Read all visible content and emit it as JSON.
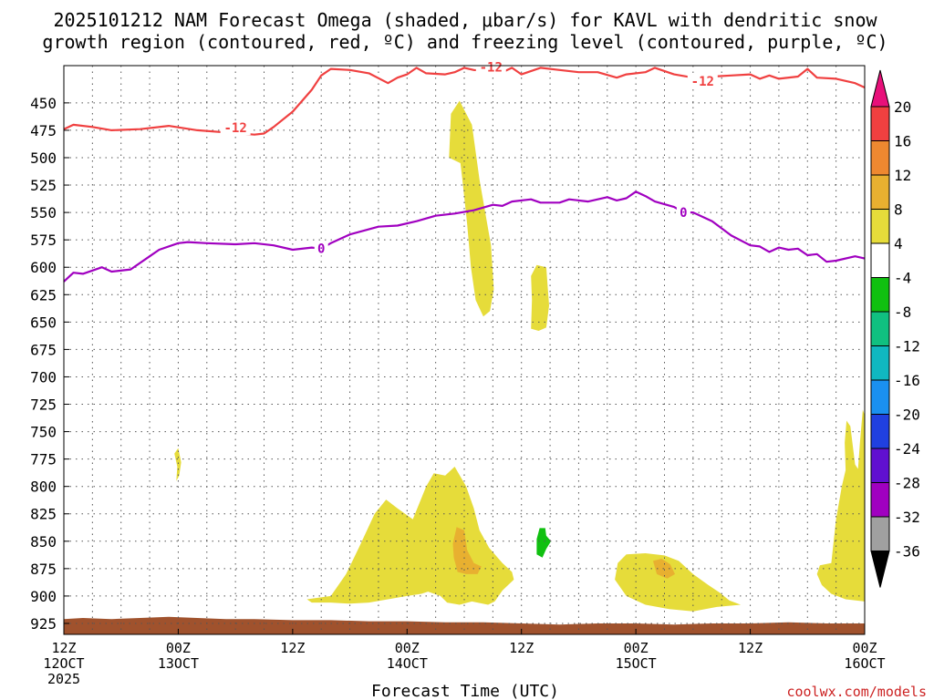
{
  "chart_data": {
    "type": "time-height cross section",
    "title_line1": "2025101212 NAM Forecast Omega (shaded, μbar/s) for KAVL with dendritic snow",
    "title_line2": "growth region (contoured, red, ºC) and freezing level (contoured, purple, ºC)",
    "xlabel": "Forecast Time (UTC)",
    "credit": "coolwx.com/models",
    "y_ticks": [
      450,
      475,
      500,
      525,
      550,
      575,
      600,
      625,
      650,
      675,
      700,
      725,
      750,
      775,
      800,
      825,
      850,
      875,
      900,
      925
    ],
    "ylim_hpa": [
      416,
      935
    ],
    "x_range_hours": [
      0,
      84
    ],
    "x_ticks": [
      {
        "hour": 0,
        "l1": "12Z",
        "l2": "12OCT",
        "l3": "2025"
      },
      {
        "hour": 12,
        "l1": "00Z",
        "l2": "13OCT",
        "l3": ""
      },
      {
        "hour": 24,
        "l1": "12Z",
        "l2": "",
        "l3": ""
      },
      {
        "hour": 36,
        "l1": "00Z",
        "l2": "14OCT",
        "l3": ""
      },
      {
        "hour": 48,
        "l1": "12Z",
        "l2": "",
        "l3": ""
      },
      {
        "hour": 60,
        "l1": "00Z",
        "l2": "15OCT",
        "l3": ""
      },
      {
        "hour": 72,
        "l1": "12Z",
        "l2": "",
        "l3": ""
      },
      {
        "hour": 84,
        "l1": "00Z",
        "l2": "16OCT",
        "l3": ""
      }
    ],
    "colorbar": {
      "labels": [
        "20",
        "16",
        "12",
        "8",
        "4",
        "-4",
        "-8",
        "-12",
        "-16",
        "-20",
        "-24",
        "-28",
        "-32",
        "-36"
      ],
      "colors": [
        "#e8107a",
        "#f04040",
        "#ee8830",
        "#e8b030",
        "#e6dc3a",
        "#ffffff",
        "#10c010",
        "#10c080",
        "#10b8c0",
        "#1a90f0",
        "#2040e0",
        "#6010d0",
        "#a000c0",
        "#a0a0a0",
        "#000000"
      ]
    },
    "series": [
      {
        "name": "-12",
        "color": "#f04040",
        "labels": [
          {
            "x": 18.0,
            "y": 472.7
          },
          {
            "x": 44.8,
            "y": 417.1
          },
          {
            "x": 67.0,
            "y": 430.3
          }
        ],
        "points": [
          [
            0,
            474
          ],
          [
            1,
            470
          ],
          [
            3,
            472
          ],
          [
            5,
            475
          ],
          [
            8,
            474
          ],
          [
            11,
            471
          ],
          [
            14,
            475
          ],
          [
            17,
            477
          ],
          [
            20,
            479
          ],
          [
            21,
            478
          ],
          [
            22,
            472
          ],
          [
            24,
            458
          ],
          [
            26,
            438
          ],
          [
            27,
            425
          ],
          [
            28,
            419
          ],
          [
            30,
            420
          ],
          [
            32,
            423
          ],
          [
            34,
            432
          ],
          [
            35,
            427
          ],
          [
            36,
            424
          ],
          [
            37,
            418
          ],
          [
            38,
            423
          ],
          [
            40,
            424
          ],
          [
            41,
            422
          ],
          [
            42,
            418
          ],
          [
            43,
            420
          ],
          [
            46,
            422
          ],
          [
            47,
            418
          ],
          [
            48,
            424
          ],
          [
            50,
            418
          ],
          [
            52,
            420
          ],
          [
            54,
            422
          ],
          [
            56,
            422
          ],
          [
            58,
            427
          ],
          [
            59,
            424
          ],
          [
            61,
            422
          ],
          [
            62,
            418
          ],
          [
            64,
            424
          ],
          [
            66,
            427
          ],
          [
            68,
            426
          ],
          [
            70,
            425
          ],
          [
            72,
            424
          ],
          [
            73,
            428
          ],
          [
            74,
            425
          ],
          [
            75,
            428
          ],
          [
            77,
            426
          ],
          [
            78,
            419
          ],
          [
            79,
            427
          ],
          [
            81,
            428
          ],
          [
            83,
            432
          ],
          [
            84,
            436
          ]
        ]
      },
      {
        "name": "0",
        "color": "#a000c0",
        "labels": [
          {
            "x": 27.0,
            "y": 582.6
          },
          {
            "x": 65.0,
            "y": 550.0
          }
        ],
        "points": [
          [
            0,
            613
          ],
          [
            1,
            605
          ],
          [
            2,
            606
          ],
          [
            3,
            603
          ],
          [
            4,
            600
          ],
          [
            5,
            604
          ],
          [
            7,
            602
          ],
          [
            9,
            590
          ],
          [
            10,
            584
          ],
          [
            12,
            578
          ],
          [
            13,
            577
          ],
          [
            15,
            578
          ],
          [
            18,
            579
          ],
          [
            20,
            578
          ],
          [
            22,
            580
          ],
          [
            24,
            584
          ],
          [
            26,
            582
          ],
          [
            27,
            583
          ],
          [
            28,
            578
          ],
          [
            30,
            570
          ],
          [
            33,
            563
          ],
          [
            35,
            562
          ],
          [
            37,
            558
          ],
          [
            39,
            553
          ],
          [
            41,
            551
          ],
          [
            43,
            548
          ],
          [
            45,
            543
          ],
          [
            46,
            544
          ],
          [
            47,
            540
          ],
          [
            49,
            538
          ],
          [
            50,
            541
          ],
          [
            52,
            541
          ],
          [
            53,
            538
          ],
          [
            55,
            540
          ],
          [
            57,
            536
          ],
          [
            58,
            539
          ],
          [
            59,
            537
          ],
          [
            60,
            531
          ],
          [
            61,
            535
          ],
          [
            62,
            540
          ],
          [
            64,
            545
          ],
          [
            65,
            550
          ],
          [
            66,
            550
          ],
          [
            68,
            558
          ],
          [
            70,
            571
          ],
          [
            72,
            580
          ],
          [
            73,
            581
          ],
          [
            74,
            586
          ],
          [
            75,
            582
          ],
          [
            76,
            584
          ],
          [
            77,
            583
          ],
          [
            78,
            589
          ],
          [
            79,
            588
          ],
          [
            80,
            595
          ],
          [
            81,
            594
          ],
          [
            83,
            590
          ],
          [
            84,
            592
          ]
        ]
      }
    ],
    "omega_regions": [
      {
        "value": "+4 to +8",
        "color": "#e6dc3a",
        "points": [
          [
            40.4,
            500
          ],
          [
            40.6,
            460
          ],
          [
            41.5,
            448
          ],
          [
            42.8,
            470
          ],
          [
            43.6,
            520
          ],
          [
            44.2,
            550
          ],
          [
            44.8,
            580
          ],
          [
            45.1,
            620
          ],
          [
            44.7,
            640
          ],
          [
            44.0,
            645
          ],
          [
            43.2,
            630
          ],
          [
            42.7,
            600
          ],
          [
            42.3,
            560
          ],
          [
            41.8,
            520
          ],
          [
            41.6,
            505
          ]
        ]
      },
      {
        "value": "+4 to +8",
        "color": "#e6dc3a",
        "points": [
          [
            49.0,
            608
          ],
          [
            49.6,
            598
          ],
          [
            50.6,
            600
          ],
          [
            50.9,
            635
          ],
          [
            50.6,
            655
          ],
          [
            49.8,
            658
          ],
          [
            49.0,
            656
          ],
          [
            49.1,
            630
          ]
        ]
      },
      {
        "value": "+4 to +8",
        "color": "#e6dc3a",
        "points": [
          [
            11.6,
            770
          ],
          [
            12.0,
            765
          ],
          [
            12.3,
            778
          ],
          [
            12.1,
            790
          ],
          [
            11.8,
            795
          ],
          [
            11.9,
            782
          ]
        ]
      },
      {
        "value": "+4 to +8",
        "color": "#e6dc3a",
        "points": [
          [
            25.5,
            903
          ],
          [
            28.0,
            900
          ],
          [
            29.6,
            880
          ],
          [
            31.0,
            855
          ],
          [
            32.6,
            825
          ],
          [
            33.8,
            812
          ],
          [
            35.0,
            820
          ],
          [
            36.6,
            830
          ],
          [
            38.0,
            800
          ],
          [
            38.8,
            788
          ],
          [
            40.0,
            790
          ],
          [
            41.0,
            782
          ],
          [
            42.2,
            800
          ],
          [
            43.0,
            820
          ],
          [
            43.6,
            840
          ],
          [
            44.6,
            856
          ],
          [
            46.0,
            870
          ],
          [
            47.0,
            878
          ],
          [
            47.2,
            885
          ],
          [
            46.0,
            895
          ],
          [
            45.2,
            905
          ],
          [
            44.5,
            908
          ],
          [
            42.8,
            905
          ],
          [
            41.5,
            908
          ],
          [
            40.2,
            906
          ],
          [
            39.5,
            900
          ],
          [
            38.2,
            896
          ],
          [
            37.5,
            898
          ],
          [
            36.0,
            900
          ],
          [
            34.0,
            903
          ],
          [
            32.0,
            906
          ],
          [
            30.0,
            907
          ],
          [
            28.0,
            906
          ],
          [
            26.0,
            906
          ]
        ]
      },
      {
        "value": "+4 to +8",
        "color": "#e6dc3a",
        "points": [
          [
            57.8,
            885
          ],
          [
            58.1,
            870
          ],
          [
            59.0,
            862
          ],
          [
            61.0,
            861
          ],
          [
            63.0,
            863
          ],
          [
            64.5,
            868
          ],
          [
            66.0,
            880
          ],
          [
            67.6,
            890
          ],
          [
            68.8,
            897
          ],
          [
            69.8,
            904
          ],
          [
            71.0,
            908
          ],
          [
            68.5,
            910
          ],
          [
            66.0,
            914
          ],
          [
            63.5,
            912
          ],
          [
            61.0,
            908
          ],
          [
            59.0,
            900
          ]
        ]
      },
      {
        "value": "+4 to +8",
        "color": "#e6dc3a",
        "points": [
          [
            79.0,
            880
          ],
          [
            79.3,
            872
          ],
          [
            80.5,
            870
          ],
          [
            81.0,
            830
          ],
          [
            81.6,
            800
          ],
          [
            82.0,
            785
          ],
          [
            81.9,
            760
          ],
          [
            82.1,
            740
          ],
          [
            82.5,
            745
          ],
          [
            83.0,
            780
          ],
          [
            83.3,
            784
          ],
          [
            83.5,
            760
          ],
          [
            83.8,
            730
          ],
          [
            84.0,
            735
          ],
          [
            84.0,
            905
          ],
          [
            82.0,
            903
          ],
          [
            80.5,
            898
          ],
          [
            79.5,
            890
          ]
        ]
      },
      {
        "value": "+8 to +12",
        "color": "#e8b030",
        "points": [
          [
            40.8,
            852
          ],
          [
            41.2,
            837
          ],
          [
            42.0,
            840
          ],
          [
            42.3,
            858
          ],
          [
            43.0,
            870
          ],
          [
            43.8,
            873
          ],
          [
            43.4,
            880
          ],
          [
            42.2,
            880
          ],
          [
            41.3,
            878
          ],
          [
            40.9,
            865
          ]
        ]
      },
      {
        "value": "+8 to +12",
        "color": "#e8b030",
        "points": [
          [
            61.8,
            868
          ],
          [
            62.7,
            866
          ],
          [
            63.6,
            871
          ],
          [
            64.1,
            880
          ],
          [
            63.3,
            884
          ],
          [
            62.2,
            880
          ]
        ]
      },
      {
        "value": "-4 to -8",
        "color": "#10c010",
        "points": [
          [
            49.6,
            848
          ],
          [
            49.9,
            838
          ],
          [
            50.5,
            838
          ],
          [
            50.6,
            845
          ],
          [
            51.1,
            850
          ],
          [
            50.6,
            857
          ],
          [
            50.2,
            865
          ],
          [
            49.6,
            862
          ]
        ]
      }
    ],
    "ground": {
      "color": "#a0522d",
      "top_points": [
        [
          0,
          921
        ],
        [
          2,
          920
        ],
        [
          5,
          921
        ],
        [
          8,
          920
        ],
        [
          11,
          919
        ],
        [
          14,
          920
        ],
        [
          17,
          921
        ],
        [
          20,
          921
        ],
        [
          24,
          922
        ],
        [
          28,
          922
        ],
        [
          32,
          923
        ],
        [
          36,
          923
        ],
        [
          40,
          924
        ],
        [
          44,
          924
        ],
        [
          48,
          925
        ],
        [
          52,
          926
        ],
        [
          56,
          925
        ],
        [
          60,
          925
        ],
        [
          64,
          926
        ],
        [
          68,
          925
        ],
        [
          72,
          925
        ],
        [
          76,
          924
        ],
        [
          80,
          925
        ],
        [
          84,
          925
        ]
      ]
    }
  }
}
